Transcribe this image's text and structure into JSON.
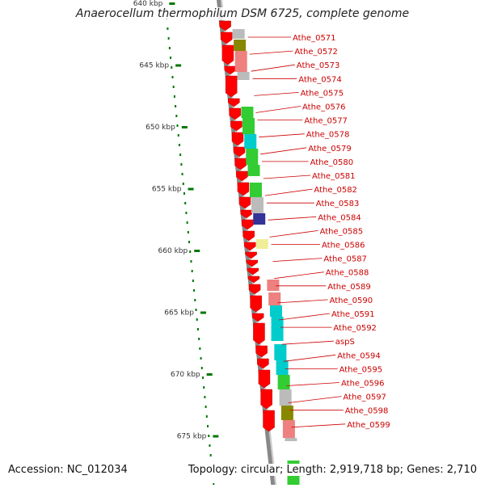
{
  "title": "Anaerocellum thermophilum DSM 6725, complete genome",
  "footer": {
    "accession": "Accession: NC_012034",
    "topology": "Topology: circular",
    "length": "Length: 2,919,718 bp",
    "genes": "Genes: 2,710"
  },
  "kbp_ticks": [
    "640 kbp",
    "645 kbp",
    "650 kbp",
    "655 kbp",
    "660 kbp",
    "665 kbp",
    "670 kbp",
    "675 kbp"
  ],
  "colors": {
    "cds_red": "#ff0000",
    "label_red": "#cc0000",
    "backbone_gray": "#888888",
    "tick_green": "#007700",
    "cyan": "#00cccc",
    "green": "#33cc33",
    "salmon": "#ee8080",
    "olive": "#888800",
    "navy": "#333399",
    "khaki": "#eeee99",
    "light_gray": "#bbbbbb"
  },
  "gene_labels": [
    "Athe_0571",
    "Athe_0572",
    "Athe_0573",
    "Athe_0574",
    "Athe_0575",
    "Athe_0576",
    "Athe_0577",
    "Athe_0578",
    "Athe_0579",
    "Athe_0580",
    "Athe_0581",
    "Athe_0582",
    "Athe_0583",
    "Athe_0584",
    "Athe_0585",
    "Athe_0586",
    "Athe_0587",
    "Athe_0588",
    "Athe_0589",
    "Athe_0590",
    "Athe_0591",
    "Athe_0592",
    "aspS",
    "Athe_0594",
    "Athe_0595",
    "Athe_0596",
    "Athe_0597",
    "Athe_0598",
    "Athe_0599"
  ],
  "feature_bars": [
    "light_gray",
    "olive",
    "salmon",
    "light_gray",
    "green",
    "green",
    "cyan",
    "green",
    "green",
    "green",
    "light_gray",
    "navy",
    "khaki",
    "salmon",
    "salmon",
    "cyan",
    "cyan",
    "cyan",
    "cyan",
    "green"
  ]
}
